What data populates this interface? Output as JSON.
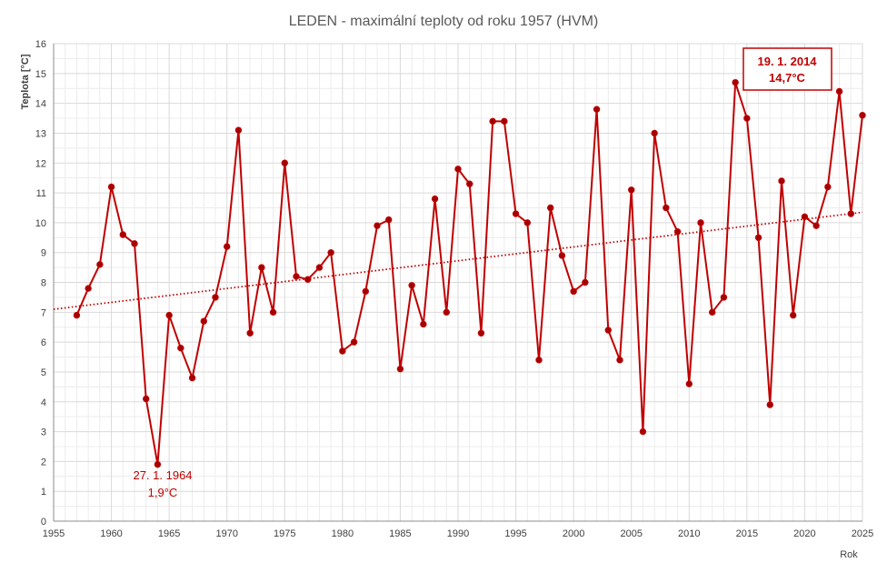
{
  "chart_data": {
    "type": "line",
    "title": "LEDEN - maximální teploty od roku 1957 (HVM)",
    "xlabel": "Rok",
    "ylabel": "Teplota [°C]",
    "xlim": [
      1955,
      2025
    ],
    "ylim": [
      0,
      16
    ],
    "xticks": [
      1955,
      1960,
      1965,
      1970,
      1975,
      1980,
      1985,
      1990,
      1995,
      2000,
      2005,
      2010,
      2015,
      2020,
      2025
    ],
    "yticks": [
      0,
      1,
      2,
      3,
      4,
      5,
      6,
      7,
      8,
      9,
      10,
      11,
      12,
      13,
      14,
      15,
      16
    ],
    "grid": true,
    "legend": "none",
    "colors": {
      "series": "#c00000",
      "grid_major": "#d9d9d9",
      "grid_minor": "#ececec",
      "box_border": "#c00000"
    },
    "series": [
      {
        "x": [
          1957,
          1958,
          1959,
          1960,
          1961,
          1962,
          1963,
          1964,
          1965,
          1966,
          1967,
          1968,
          1969,
          1970,
          1971,
          1972,
          1973,
          1974,
          1975,
          1976,
          1977,
          1978,
          1979,
          1980,
          1981,
          1982,
          1983,
          1984,
          1985,
          1986,
          1987,
          1988,
          1989,
          1990,
          1991,
          1992,
          1993,
          1994,
          1995,
          1996,
          1997,
          1998,
          1999,
          2000,
          2001,
          2002,
          2003,
          2004,
          2005,
          2006,
          2007,
          2008,
          2009,
          2010,
          2011,
          2012,
          2013,
          2014,
          2015,
          2016,
          2017,
          2018,
          2019,
          2020,
          2021,
          2022,
          2023,
          2024,
          2025
        ],
        "values": [
          6.9,
          7.8,
          8.6,
          11.2,
          9.6,
          9.3,
          4.1,
          1.9,
          6.9,
          5.8,
          4.8,
          6.7,
          7.5,
          9.2,
          13.1,
          6.3,
          8.5,
          7.0,
          12.0,
          8.2,
          8.1,
          8.5,
          9.0,
          5.7,
          6.0,
          7.7,
          9.9,
          10.1,
          5.1,
          7.9,
          6.6,
          10.8,
          7.0,
          11.8,
          11.3,
          6.3,
          13.4,
          13.4,
          10.3,
          10.0,
          5.4,
          10.5,
          8.9,
          7.7,
          8.0,
          13.8,
          6.4,
          5.4,
          11.1,
          3.0,
          13.0,
          10.5,
          9.7,
          4.6,
          10.0,
          7.0,
          7.5,
          14.7,
          13.5,
          9.5,
          3.9,
          11.4,
          6.9,
          10.2,
          9.9,
          11.2,
          14.4,
          10.3,
          13.6
        ]
      }
    ],
    "trendline": {
      "style": "dotted",
      "start": [
        1955,
        7.1
      ],
      "end": [
        2025,
        10.35
      ]
    },
    "annotations": [
      {
        "id": "min",
        "line1": "27. 1. 1964",
        "line2": "1,9°C",
        "boxed": false
      },
      {
        "id": "max",
        "line1": "19. 1. 2014",
        "line2": "14,7°C",
        "boxed": true
      }
    ]
  }
}
